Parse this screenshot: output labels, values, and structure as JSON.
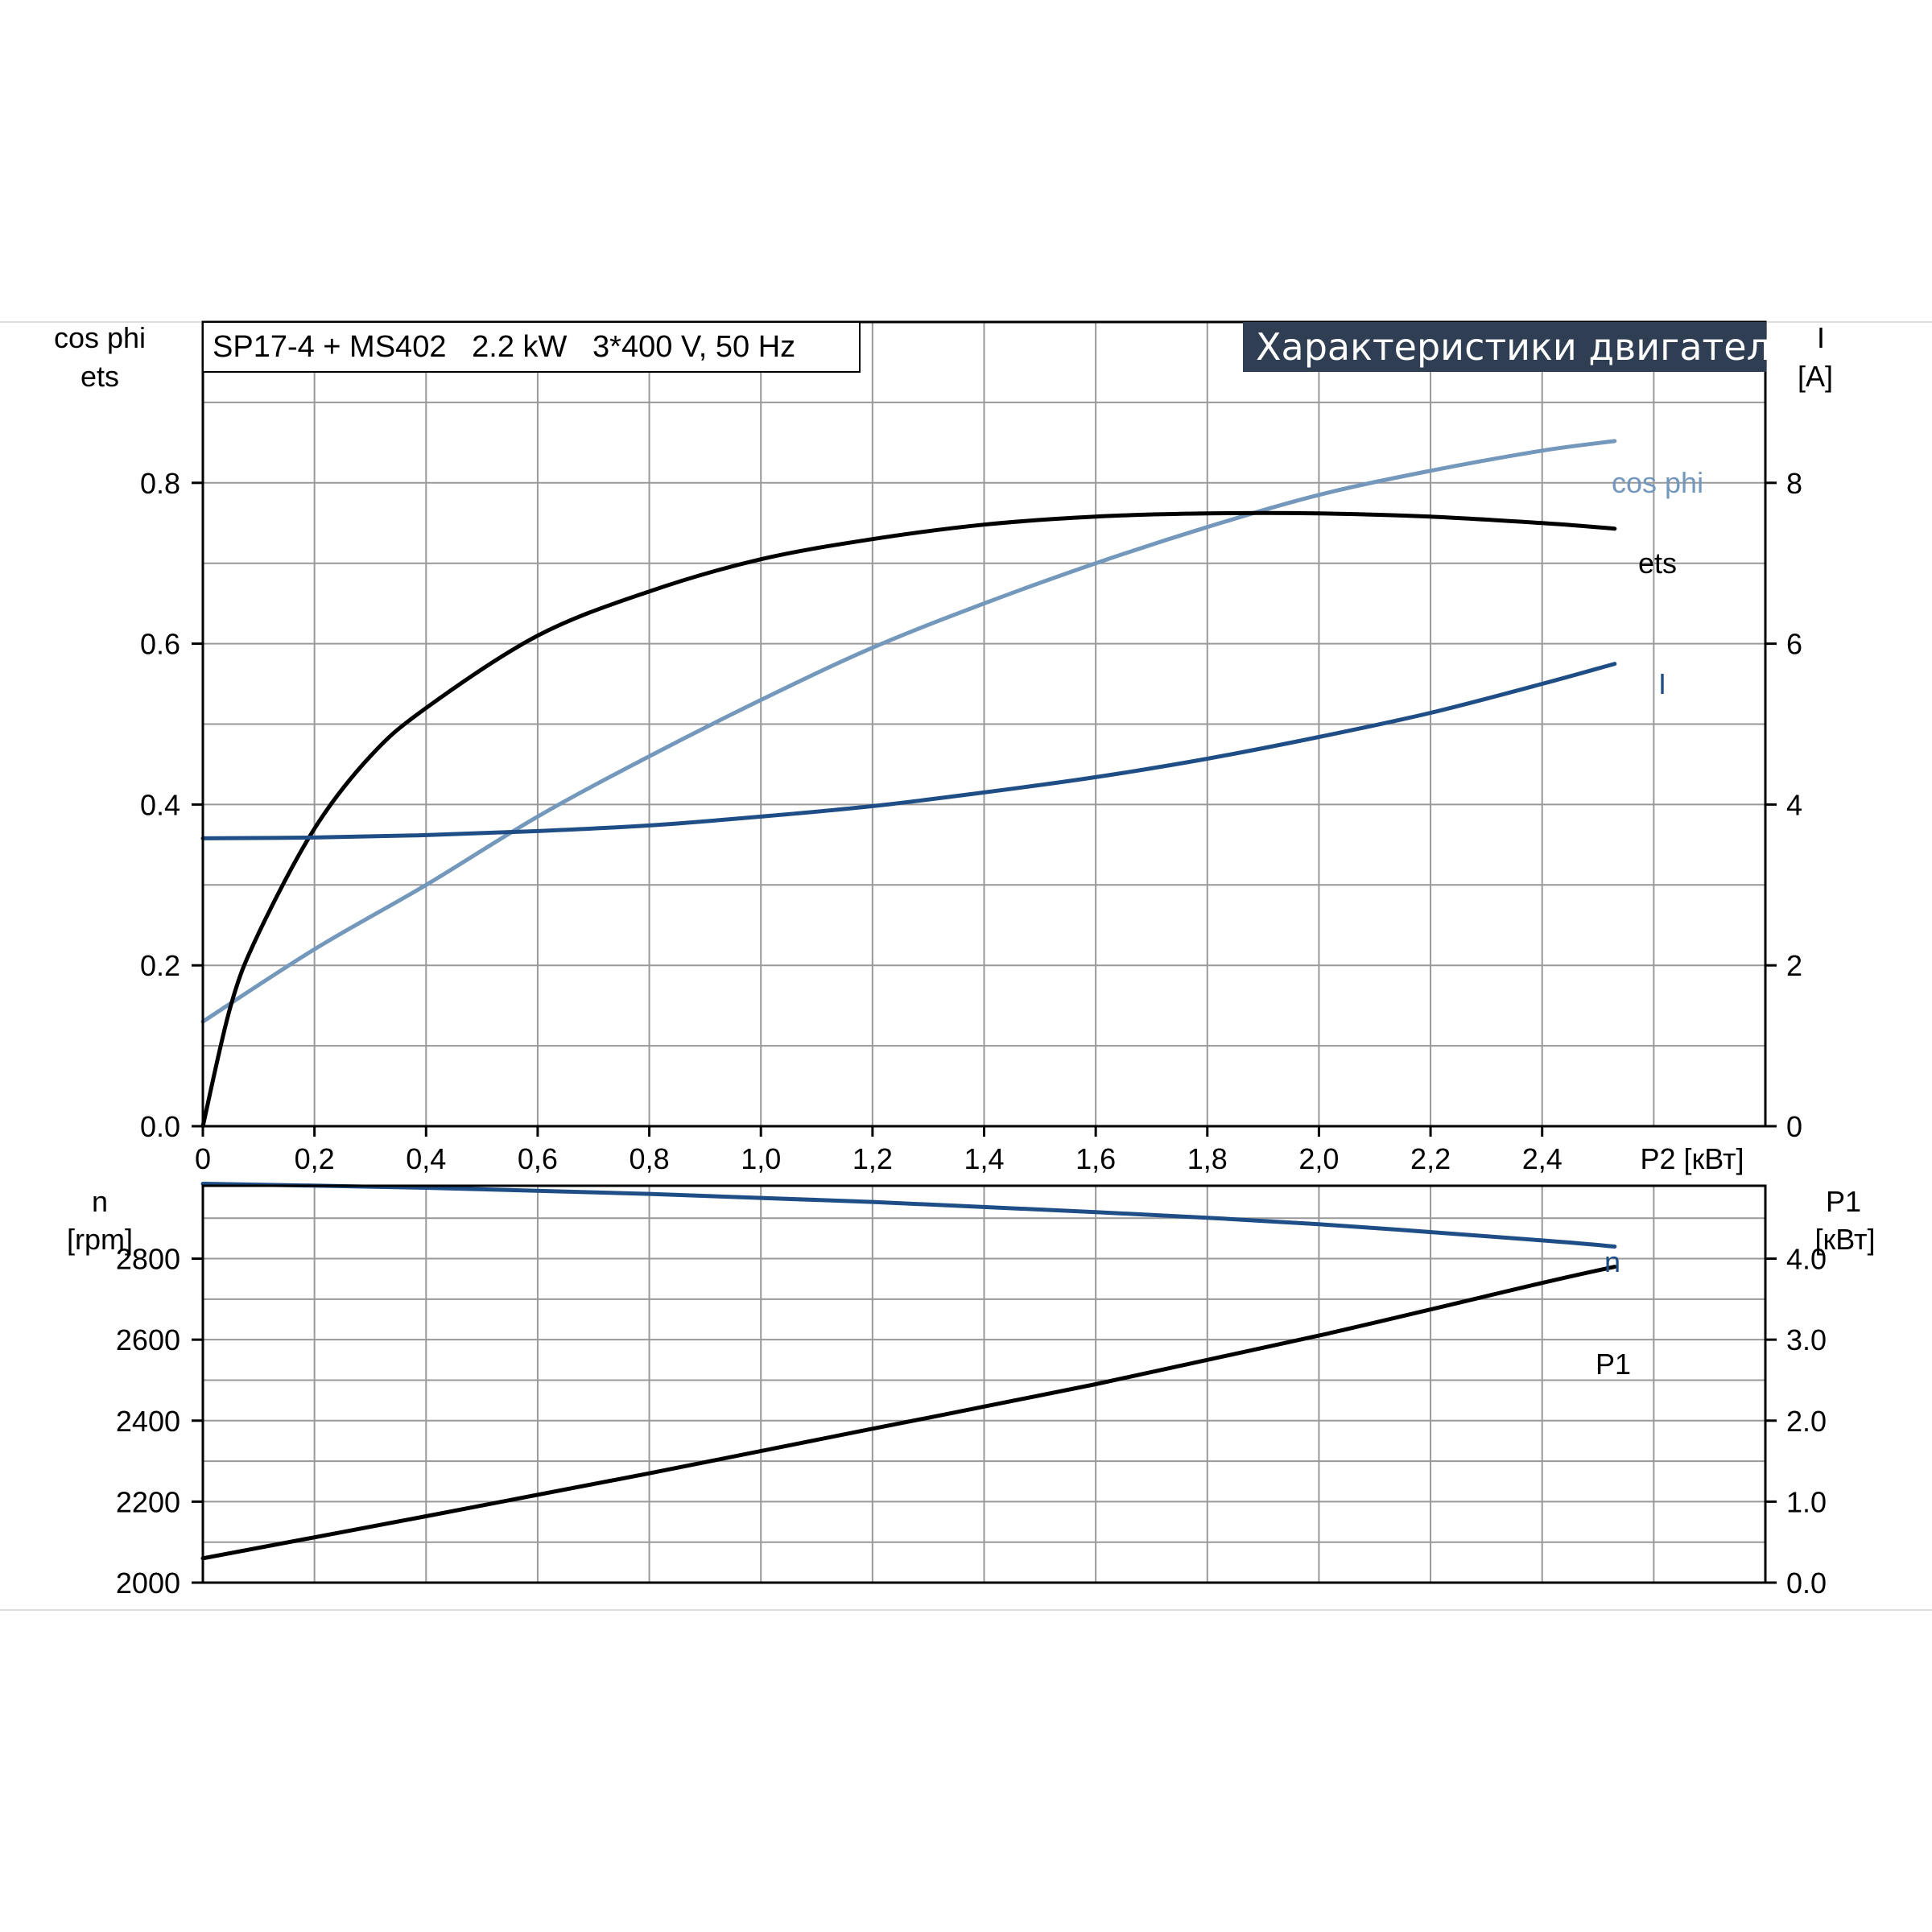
{
  "chart_data": [
    {
      "type": "line",
      "title": "Характеристики двигателя",
      "subtitle": "SP17-4 + MS402   2.2 kW   3*400 V, 50 Hz",
      "xlabel": "P2 [кВт]",
      "ylabel_left": [
        "cos phi",
        "ets"
      ],
      "ylabel_right": [
        "I",
        "[A]"
      ],
      "xlim": [
        0,
        2.8
      ],
      "ylim_left": [
        0,
        1.0
      ],
      "ylim_right": [
        0,
        10
      ],
      "x_ticks": [
        "0",
        "0,2",
        "0,4",
        "0,6",
        "0,8",
        "1,0",
        "1,2",
        "1,4",
        "1,6",
        "1,8",
        "2,0",
        "2,2",
        "2,4"
      ],
      "x_tick_values": [
        0,
        0.2,
        0.4,
        0.6,
        0.8,
        1.0,
        1.2,
        1.4,
        1.6,
        1.8,
        2.0,
        2.2,
        2.4
      ],
      "y_left_ticks": [
        "0.0",
        "0.2",
        "0.4",
        "0.6",
        "0.8"
      ],
      "y_left_tick_values": [
        0,
        0.2,
        0.4,
        0.6,
        0.8
      ],
      "y_right_ticks": [
        "0",
        "2",
        "4",
        "6",
        "8"
      ],
      "y_right_tick_values": [
        0,
        2,
        4,
        6,
        8
      ],
      "grid": true,
      "series": [
        {
          "name": "cos phi",
          "axis": "left",
          "color": "#7398bb",
          "x": [
            0,
            0.2,
            0.4,
            0.6,
            0.8,
            1.0,
            1.2,
            1.4,
            1.6,
            1.8,
            2.0,
            2.2,
            2.4,
            2.53
          ],
          "y": [
            0.13,
            0.22,
            0.3,
            0.385,
            0.46,
            0.53,
            0.595,
            0.65,
            0.7,
            0.745,
            0.785,
            0.815,
            0.84,
            0.852
          ]
        },
        {
          "name": "ets",
          "axis": "left",
          "color": "#000000",
          "x": [
            0,
            0.05,
            0.1,
            0.2,
            0.3,
            0.4,
            0.6,
            0.8,
            1.0,
            1.2,
            1.4,
            1.6,
            1.8,
            2.0,
            2.2,
            2.4,
            2.53
          ],
          "y": [
            0.0,
            0.15,
            0.24,
            0.37,
            0.46,
            0.52,
            0.61,
            0.665,
            0.705,
            0.73,
            0.748,
            0.758,
            0.762,
            0.762,
            0.758,
            0.75,
            0.743
          ]
        },
        {
          "name": "I",
          "axis": "right",
          "color": "#1f4e86",
          "x": [
            0,
            0.2,
            0.4,
            0.6,
            0.8,
            1.0,
            1.2,
            1.4,
            1.6,
            1.8,
            2.0,
            2.2,
            2.4,
            2.53
          ],
          "y": [
            3.58,
            3.59,
            3.62,
            3.67,
            3.74,
            3.85,
            3.98,
            4.15,
            4.34,
            4.57,
            4.84,
            5.14,
            5.5,
            5.75
          ]
        }
      ]
    },
    {
      "type": "line",
      "ylabel_left": [
        "n",
        "[rpm]"
      ],
      "ylabel_right": [
        "P1",
        "[кВт]"
      ],
      "xlim": [
        0,
        2.8
      ],
      "ylim_left": [
        2000,
        2980
      ],
      "ylim_right": [
        0.0,
        4.9
      ],
      "y_left_ticks": [
        "2000",
        "2200",
        "2400",
        "2600",
        "2800"
      ],
      "y_left_tick_values": [
        2000,
        2200,
        2400,
        2600,
        2800
      ],
      "y_right_ticks": [
        "0.0",
        "1.0",
        "2.0",
        "3.0",
        "4.0"
      ],
      "y_right_tick_values": [
        0,
        1,
        2,
        3,
        4
      ],
      "grid": true,
      "series": [
        {
          "name": "n",
          "axis": "left",
          "color": "#1f4e86",
          "x": [
            0,
            0.4,
            0.8,
            1.2,
            1.6,
            2.0,
            2.4,
            2.53
          ],
          "y": [
            2985,
            2975,
            2960,
            2940,
            2915,
            2885,
            2845,
            2830
          ]
        },
        {
          "name": "P1",
          "axis": "right",
          "color": "#000000",
          "x": [
            0,
            0.4,
            0.8,
            1.2,
            1.6,
            2.0,
            2.4,
            2.53
          ],
          "y": [
            0.3,
            0.82,
            1.35,
            1.9,
            2.45,
            3.05,
            3.7,
            3.9
          ]
        }
      ]
    }
  ]
}
